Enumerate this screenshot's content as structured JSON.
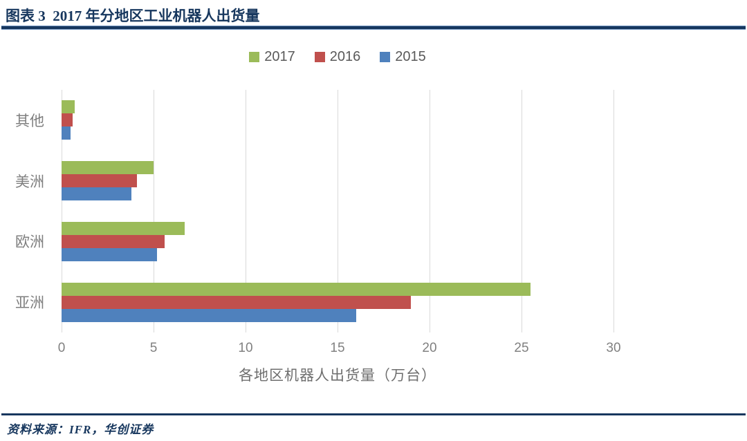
{
  "header": {
    "figure_label": "图表 3",
    "title": "图表 3  2017 年分地区工业机器人出货量"
  },
  "chart_data": {
    "type": "bar",
    "orientation": "horizontal",
    "title": "2017 年分地区工业机器人出货量",
    "categories": [
      "其他",
      "美洲",
      "欧洲",
      "亚洲"
    ],
    "series": [
      {
        "name": "2017",
        "color": "#9BBB59",
        "values": [
          0.7,
          5.0,
          6.7,
          25.5
        ]
      },
      {
        "name": "2016",
        "color": "#C0504D",
        "values": [
          0.6,
          4.1,
          5.6,
          19.0
        ]
      },
      {
        "name": "2015",
        "color": "#4F81BD",
        "values": [
          0.5,
          3.8,
          5.2,
          16.0
        ]
      }
    ],
    "xlabel": "各地区机器人出货量（万台）",
    "ylabel": "",
    "x_ticks": [
      0,
      5,
      10,
      15,
      20,
      25,
      30
    ],
    "xlim": [
      0,
      30
    ],
    "grid": true,
    "gridline_color": "#D9D9D9",
    "legend_position": "top",
    "legend_text_color": "#595959",
    "axis_text_color": "#7F7F7F"
  },
  "footer": {
    "source": "资料来源：IFR，华创证券"
  },
  "theme": {
    "accent_navy": "#17375E",
    "background": "#FFFFFF"
  }
}
